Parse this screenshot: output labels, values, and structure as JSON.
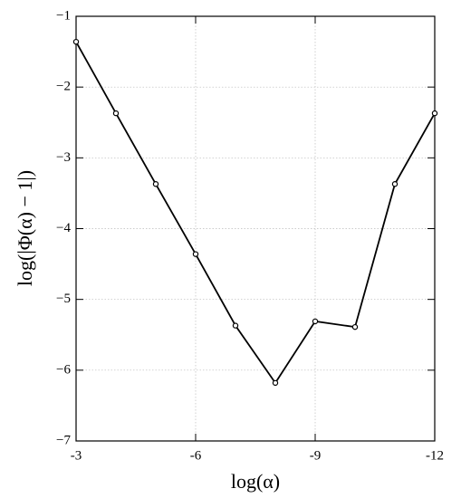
{
  "chart_data": {
    "type": "line",
    "x_label": "log(α)",
    "y_label": "log(|Φ(α) − 1|)",
    "x": [
      -3,
      -4,
      -5,
      -6,
      -7,
      -8,
      -9,
      -10,
      -11,
      -12
    ],
    "values": [
      -1.36,
      -2.37,
      -3.37,
      -4.36,
      -5.37,
      -6.18,
      -5.31,
      -5.39,
      -3.37,
      -2.37
    ],
    "color": "#000000",
    "xlim": [
      -3,
      -12
    ],
    "xticks": [
      -3,
      -6,
      -9,
      -12
    ],
    "ylim": [
      -7,
      -1
    ],
    "yticks": [
      {
        "value": -7,
        "label": "−7"
      },
      {
        "value": -6,
        "label": "−6"
      },
      {
        "value": -5,
        "label": "−5"
      },
      {
        "value": -4,
        "label": "−4"
      },
      {
        "value": -3,
        "label": "−3"
      },
      {
        "value": -2,
        "label": "−2"
      },
      {
        "value": -1,
        "label": "−1"
      }
    ],
    "grid": true
  }
}
